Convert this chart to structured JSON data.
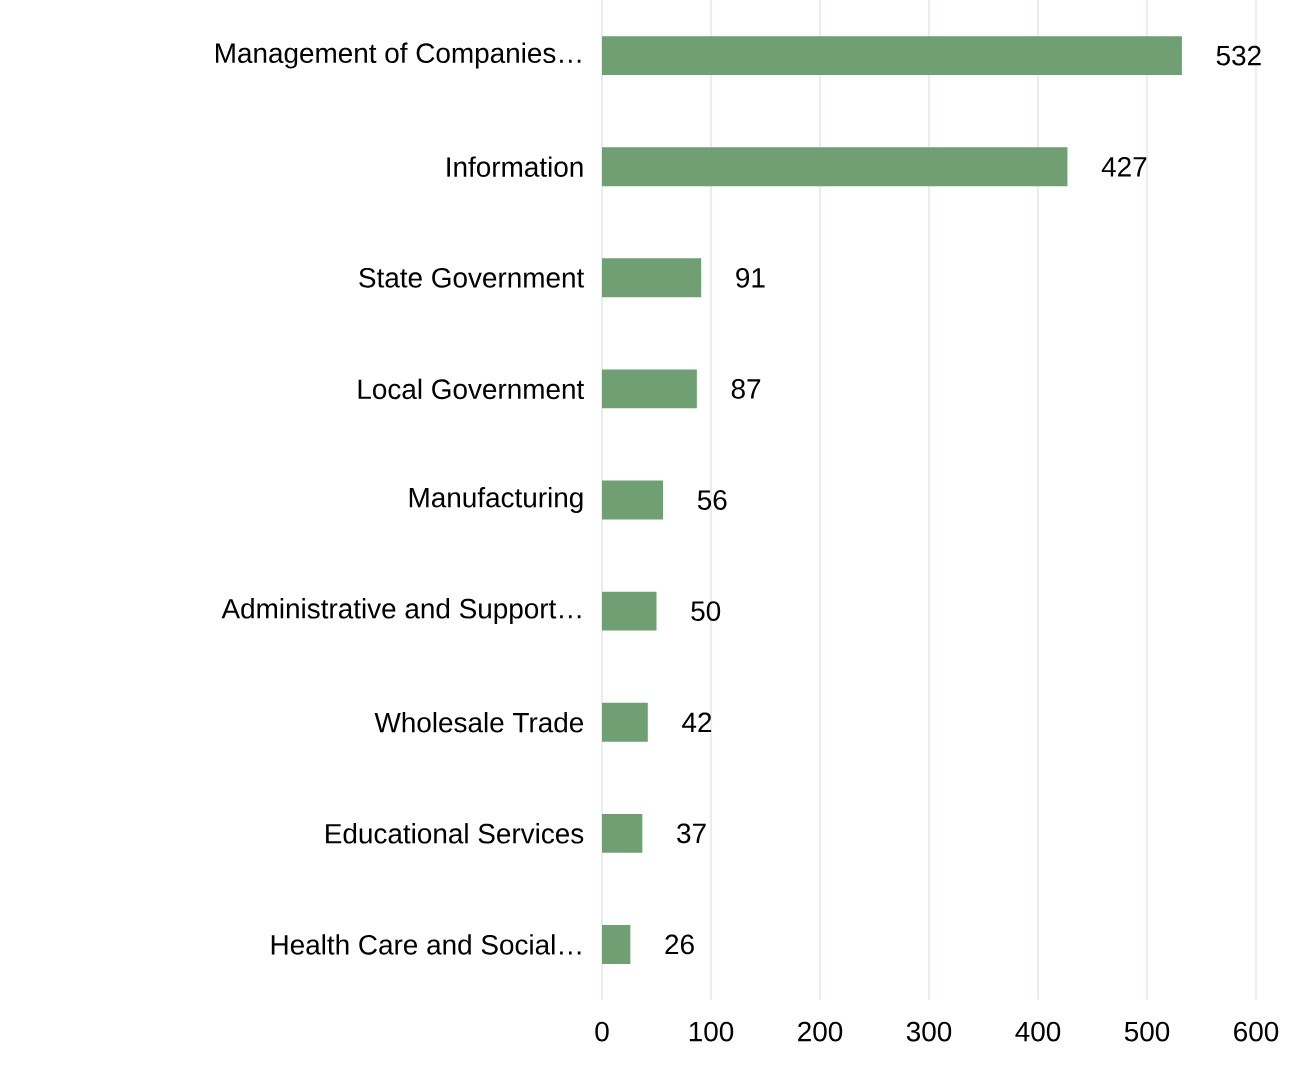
{
  "chart_data": {
    "type": "bar",
    "orientation": "horizontal",
    "categories": [
      "Management of Companies…",
      "Information",
      "State Government",
      "Local Government",
      "Manufacturing",
      "Administrative and Support…",
      "Wholesale Trade",
      "Educational Services",
      "Health Care and Social…"
    ],
    "values": [
      532,
      427,
      91,
      87,
      56,
      50,
      42,
      37,
      26
    ],
    "color": "#6f9f73",
    "xlim": [
      0,
      600
    ],
    "xticks": [
      0,
      100,
      200,
      300,
      400,
      500,
      600
    ],
    "grid": "x",
    "data_labels": true
  }
}
